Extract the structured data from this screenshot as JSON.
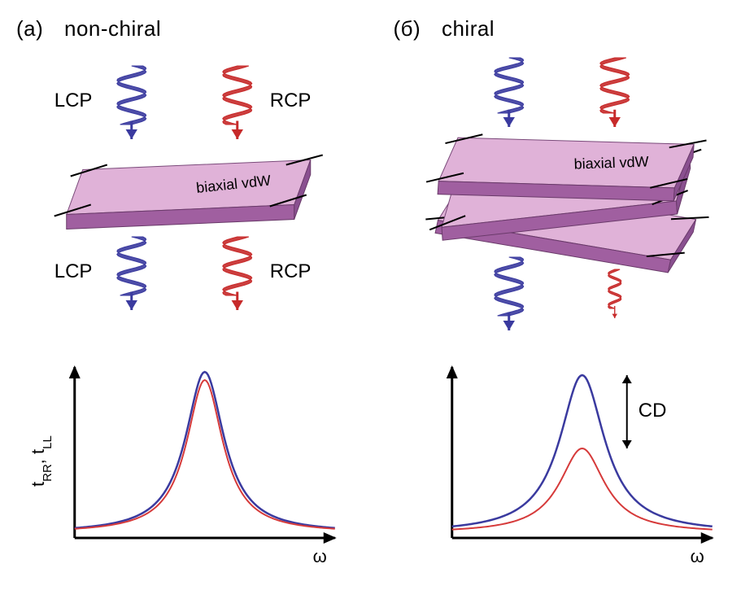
{
  "panels": {
    "a": {
      "letter": "(а)",
      "title": "non-chiral",
      "pol_labels": {
        "top_left": "LCP",
        "top_right": "RCP",
        "bottom_left": "LCP",
        "bottom_right": "RCP"
      },
      "slab_text": "biaxial vdW",
      "helix_top": {
        "lcp_size": 1.0,
        "rcp_size": 1.0
      },
      "helix_bottom": {
        "lcp_size": 1.0,
        "rcp_size": 1.0
      },
      "colors": {
        "lcp": "#3a3a9f",
        "rcp": "#c72a2a",
        "slab_top": "#e0b2d8",
        "slab_side": "#a05fa0"
      }
    },
    "b": {
      "letter": "(б)",
      "title": "chiral",
      "pol_labels": {
        "top_left": "",
        "top_right": "",
        "bottom_left": "",
        "bottom_right": ""
      },
      "slab_text": "biaxial vdW",
      "helix_top": {
        "lcp_size": 1.0,
        "rcp_size": 1.0
      },
      "helix_bottom": {
        "lcp_size": 1.0,
        "rcp_size": 0.45
      },
      "cd_label": "CD",
      "colors": {
        "lcp": "#3a3a9f",
        "rcp": "#c72a2a",
        "slab_top": "#e0b2d8",
        "slab_side": "#a05fa0"
      }
    }
  },
  "chart_a": {
    "type": "line",
    "ylabel": "t_RR, t_LL",
    "xlabel": "ω",
    "xlim": [
      0,
      10
    ],
    "ylim": [
      0,
      1.05
    ],
    "series": [
      {
        "name": "LL",
        "color": "#3a3a9f",
        "width": 2.5,
        "peak_x": 5.0,
        "peak_h": 1.02,
        "gamma": 0.9,
        "base": 0.03
      },
      {
        "name": "RR",
        "color": "#d63a3a",
        "width": 2.0,
        "peak_x": 5.0,
        "peak_h": 0.97,
        "gamma": 0.85,
        "base": 0.03
      }
    ],
    "axis_color": "#000000",
    "background": "#ffffff"
  },
  "chart_b": {
    "type": "line",
    "ylabel": "",
    "xlabel": "ω",
    "xlim": [
      0,
      10
    ],
    "ylim": [
      0,
      1.05
    ],
    "series": [
      {
        "name": "LL",
        "color": "#3a3a9f",
        "width": 2.5,
        "peak_x": 5.0,
        "peak_h": 1.0,
        "gamma": 1.05,
        "base": 0.03
      },
      {
        "name": "RR",
        "color": "#d63a3a",
        "width": 2.0,
        "peak_x": 5.0,
        "peak_h": 0.55,
        "gamma": 1.05,
        "base": 0.03
      }
    ],
    "axis_color": "#000000",
    "background": "#ffffff",
    "cd_label": "CD"
  }
}
